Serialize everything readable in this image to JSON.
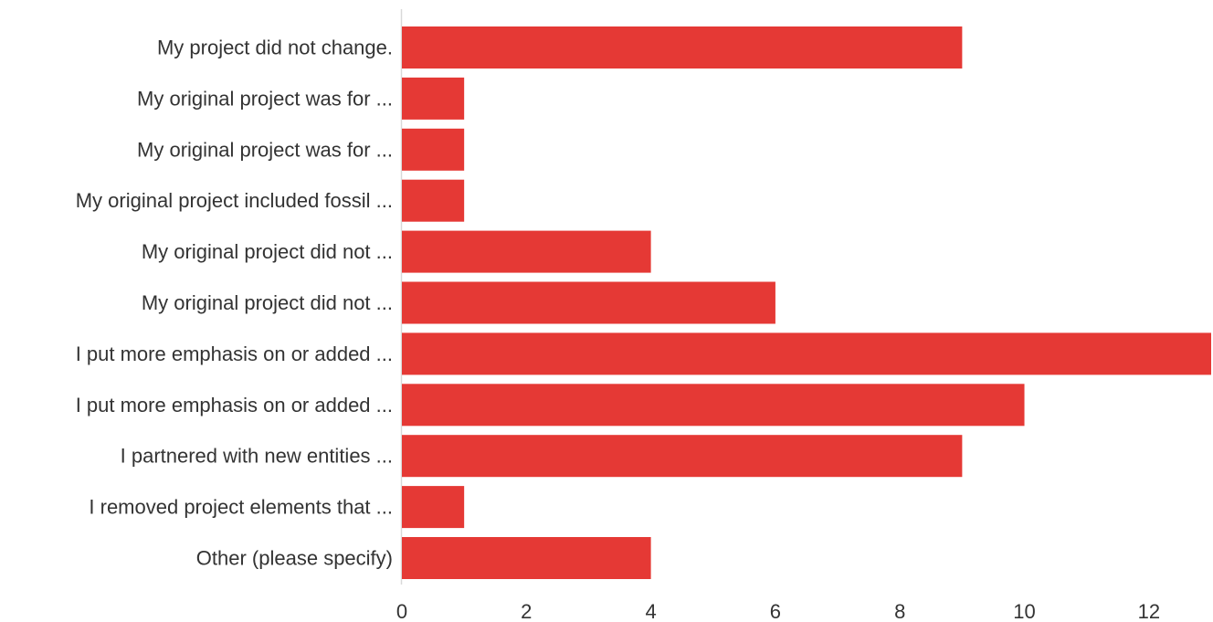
{
  "chart_data": {
    "type": "bar",
    "orientation": "horizontal",
    "categories": [
      "My project did not change.",
      "My original project was for ...",
      "My original project was for ...",
      "My original project included fossil ...",
      "My original project did not ...",
      "My original project did not ...",
      "I put more emphasis on or added ...",
      "I put more emphasis on or added ...",
      "I partnered with new entities ...",
      "I removed project elements that ...",
      "Other (please specify)"
    ],
    "values": [
      9,
      1,
      1,
      1,
      4,
      6,
      13,
      10,
      9,
      1,
      4
    ],
    "title": "",
    "xlabel": "",
    "ylabel": "",
    "xlim": [
      0,
      13
    ],
    "xticks": [
      0,
      2,
      4,
      6,
      8,
      10,
      12
    ],
    "grid": false,
    "bar_color": "#e53935",
    "axis_color": "#d9d9d9"
  }
}
